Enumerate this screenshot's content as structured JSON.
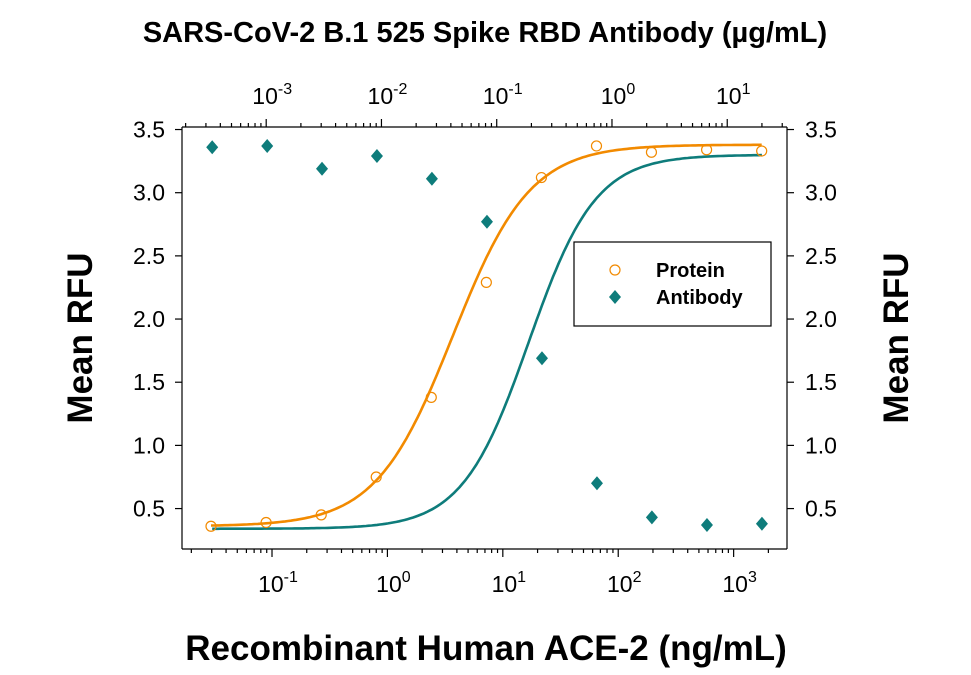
{
  "chart_data": {
    "type": "scatter",
    "title": "SARS-CoV-2 B.1 525 Spike RBD Antibody (µg/mL)",
    "xlabel": "Recombinant Human ACE-2 (ng/mL)",
    "ylabel": "Mean RFU",
    "ylabel_right": "Mean RFU",
    "x_scale": "log",
    "x_top_scale": "log",
    "xlim": [
      0.0166,
      2900
    ],
    "x_top_lim": [
      0.000186,
      33
    ],
    "ylim": [
      0.18,
      3.52
    ],
    "x_ticks": [
      {
        "base": "10",
        "exp": "-1",
        "value": 0.1
      },
      {
        "base": "10",
        "exp": "0",
        "value": 1
      },
      {
        "base": "10",
        "exp": "1",
        "value": 10
      },
      {
        "base": "10",
        "exp": "2",
        "value": 100
      },
      {
        "base": "10",
        "exp": "3",
        "value": 1000
      }
    ],
    "x_top_ticks": [
      {
        "base": "10",
        "exp": "-3",
        "value": 0.001
      },
      {
        "base": "10",
        "exp": "-2",
        "value": 0.01
      },
      {
        "base": "10",
        "exp": "-1",
        "value": 0.1
      },
      {
        "base": "10",
        "exp": "0",
        "value": 1
      },
      {
        "base": "10",
        "exp": "1",
        "value": 10
      }
    ],
    "y_ticks": [
      "0.5",
      "1.0",
      "1.5",
      "2.0",
      "2.5",
      "3.0",
      "3.5"
    ],
    "grid": false,
    "legend_position": "right",
    "series": [
      {
        "name": "Protein",
        "axis": "bottom",
        "color": "#F28A00",
        "marker": "open-circle",
        "x": [
          0.0296,
          0.0889,
          0.267,
          0.8,
          2.4,
          7.2,
          21.6,
          64.8,
          194,
          583,
          1750
        ],
        "y": [
          0.36,
          0.39,
          0.45,
          0.75,
          1.38,
          2.29,
          3.12,
          3.37,
          3.32,
          3.34,
          3.33
        ],
        "fit": {
          "bottom": 0.36,
          "top": 3.38,
          "ec50": 3.7,
          "hill": 1.3
        }
      },
      {
        "name": "Antibody",
        "axis": "top",
        "color": "#0E7C7B",
        "marker": "filled-diamond",
        "x": [
          0.00034,
          0.00102,
          0.00305,
          0.00914,
          0.0274,
          0.0823,
          0.247,
          0.741,
          2.22,
          6.67,
          20
        ],
        "y": [
          3.36,
          3.37,
          3.19,
          3.29,
          3.11,
          2.77,
          1.69,
          0.7,
          0.43,
          0.37,
          0.38
        ],
        "fit": {
          "bottom": 0.34,
          "top": 3.3,
          "ec50": 0.19,
          "hill": 1.5
        }
      }
    ]
  }
}
